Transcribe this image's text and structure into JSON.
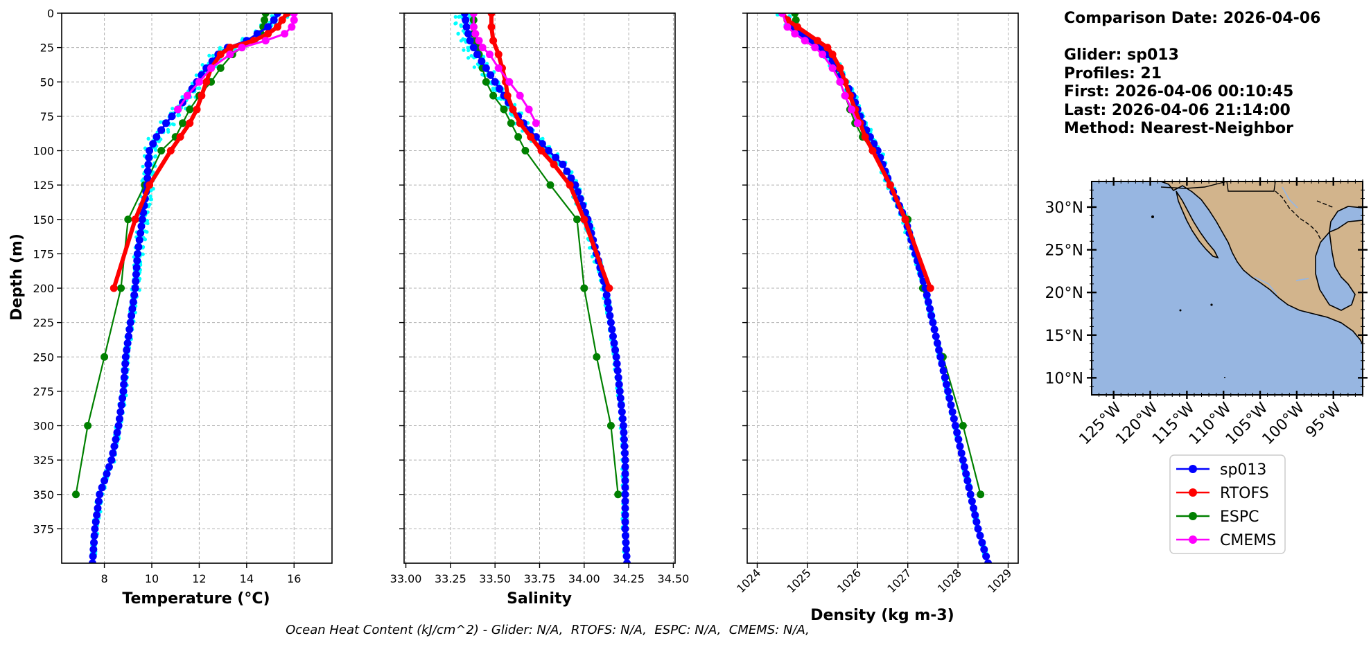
{
  "info": {
    "comparison_date": "Comparison Date: 2026-04-06",
    "glider": "Glider: sp013",
    "profiles": "Profiles: 21",
    "first": "First: 2026-04-06 00:10:45",
    "last": "Last: 2026-04-06 21:14:00",
    "method": "Method: Nearest-Neighbor"
  },
  "footer": "Ocean Heat Content (kJ/cm^2) - Glider: N/A,  RTOFS: N/A,  ESPC: N/A,  CMEMS: N/A,",
  "colors": {
    "sp013": "#0000ff",
    "RTOFS": "#ff0000",
    "ESPC": "#008000",
    "CMEMS": "#ff00ff",
    "glider_raw": "#00ffff",
    "ocean": "#97b6e1",
    "land": "#d2b48c"
  },
  "legend": [
    "sp013",
    "RTOFS",
    "ESPC",
    "CMEMS"
  ],
  "chart_data": [
    {
      "type": "line",
      "xlabel": "Temperature (°C)",
      "ylabel": "Depth (m)",
      "xlim": [
        6.2,
        17.6
      ],
      "ylim": [
        400,
        0
      ],
      "xticks": [
        8,
        10,
        12,
        14,
        16
      ],
      "yticks": [
        0,
        25,
        50,
        75,
        100,
        125,
        150,
        175,
        200,
        225,
        250,
        275,
        300,
        325,
        350,
        375
      ],
      "grid": true,
      "series": [
        {
          "name": "sp013",
          "depth": [
            2,
            10,
            20,
            25,
            30,
            40,
            50,
            60,
            70,
            80,
            90,
            100,
            110,
            125,
            150,
            175,
            200,
            225,
            250,
            275,
            300,
            325,
            350,
            375,
            400
          ],
          "values": [
            15.3,
            14.9,
            14.0,
            13.2,
            12.8,
            12.3,
            11.9,
            11.5,
            11.1,
            10.6,
            10.2,
            9.9,
            9.85,
            9.8,
            9.6,
            9.4,
            9.3,
            9.1,
            8.9,
            8.8,
            8.6,
            8.3,
            7.8,
            7.6,
            7.5
          ]
        },
        {
          "name": "RTOFS",
          "depth": [
            0,
            5,
            10,
            15,
            20,
            25,
            30,
            40,
            50,
            60,
            70,
            80,
            90,
            100,
            125,
            150,
            200
          ],
          "values": [
            15.7,
            15.5,
            15.3,
            14.9,
            14.3,
            13.3,
            12.9,
            12.5,
            12.3,
            12.1,
            11.9,
            11.6,
            11.2,
            10.8,
            9.9,
            9.3,
            8.4
          ]
        },
        {
          "name": "ESPC",
          "depth": [
            0,
            5,
            10,
            15,
            20,
            25,
            30,
            40,
            50,
            60,
            70,
            80,
            90,
            100,
            125,
            150,
            200,
            250,
            300,
            350
          ],
          "values": [
            14.8,
            14.75,
            14.7,
            14.6,
            14.3,
            13.8,
            13.4,
            12.9,
            12.5,
            12.0,
            11.6,
            11.3,
            11.0,
            10.4,
            9.7,
            9.0,
            8.7,
            8.0,
            7.3,
            6.8
          ]
        },
        {
          "name": "CMEMS",
          "depth": [
            0,
            5,
            10,
            15,
            20,
            25,
            30,
            40,
            50,
            60,
            70
          ],
          "values": [
            16.0,
            16.0,
            15.9,
            15.6,
            14.8,
            13.8,
            13.3,
            12.5,
            12.0,
            11.5,
            11.1
          ]
        }
      ]
    },
    {
      "type": "line",
      "xlabel": "Salinity",
      "xlim": [
        32.99,
        34.51
      ],
      "ylim": [
        400,
        0
      ],
      "xticks": [
        "33.00",
        "33.25",
        "33.50",
        "33.75",
        "34.00",
        "34.25",
        "34.50"
      ],
      "grid": true,
      "series": [
        {
          "name": "sp013",
          "depth": [
            0,
            10,
            20,
            30,
            40,
            50,
            60,
            70,
            80,
            90,
            100,
            110,
            125,
            150,
            175,
            200,
            225,
            250,
            275,
            300,
            325,
            350,
            375,
            400
          ],
          "values": [
            33.33,
            33.34,
            33.36,
            33.4,
            33.45,
            33.5,
            33.55,
            33.6,
            33.66,
            33.73,
            33.8,
            33.88,
            33.95,
            34.02,
            34.07,
            34.12,
            34.15,
            34.18,
            34.2,
            34.22,
            34.23,
            34.23,
            34.23,
            34.24
          ]
        },
        {
          "name": "RTOFS",
          "depth": [
            0,
            10,
            20,
            30,
            40,
            50,
            60,
            70,
            80,
            90,
            100,
            110,
            125,
            150,
            200
          ],
          "values": [
            33.48,
            33.48,
            33.49,
            33.52,
            33.54,
            33.56,
            33.57,
            33.6,
            33.64,
            33.7,
            33.76,
            33.83,
            33.92,
            34.0,
            34.14
          ]
        },
        {
          "name": "ESPC",
          "depth": [
            0,
            5,
            10,
            15,
            20,
            25,
            30,
            40,
            50,
            60,
            70,
            80,
            90,
            100,
            125,
            150,
            200,
            250,
            300,
            350
          ],
          "values": [
            33.38,
            33.38,
            33.38,
            33.38,
            33.39,
            33.4,
            33.41,
            33.43,
            33.45,
            33.49,
            33.55,
            33.59,
            33.63,
            33.67,
            33.81,
            33.96,
            34.0,
            34.07,
            34.15,
            34.19
          ]
        },
        {
          "name": "CMEMS",
          "depth": [
            0,
            10,
            15,
            20,
            25,
            30,
            40,
            50,
            60,
            70,
            80
          ],
          "values": [
            33.38,
            33.38,
            33.39,
            33.41,
            33.43,
            33.47,
            33.52,
            33.58,
            33.64,
            33.69,
            33.73
          ]
        }
      ]
    },
    {
      "type": "line",
      "xlabel": "Density (kg m-3)",
      "xlim": [
        1023.8,
        1029.2
      ],
      "ylim": [
        400,
        0
      ],
      "xticks": [
        1024,
        1025,
        1026,
        1027,
        1028,
        1029
      ],
      "grid": true,
      "series": [
        {
          "name": "sp013",
          "depth": [
            0,
            10,
            20,
            30,
            40,
            50,
            60,
            70,
            80,
            90,
            100,
            110,
            125,
            150,
            175,
            200,
            225,
            250,
            275,
            300,
            325,
            350,
            375,
            400
          ],
          "values": [
            1024.5,
            1024.7,
            1025.1,
            1025.4,
            1025.6,
            1025.75,
            1025.9,
            1026.0,
            1026.1,
            1026.25,
            1026.4,
            1026.5,
            1026.65,
            1026.95,
            1027.15,
            1027.35,
            1027.5,
            1027.65,
            1027.8,
            1027.95,
            1028.1,
            1028.25,
            1028.4,
            1028.6
          ]
        },
        {
          "name": "RTOFS",
          "depth": [
            0,
            5,
            10,
            20,
            25,
            30,
            40,
            50,
            60,
            70,
            80,
            90,
            100,
            125,
            150,
            200
          ],
          "values": [
            1024.5,
            1024.6,
            1024.8,
            1025.2,
            1025.4,
            1025.5,
            1025.65,
            1025.75,
            1025.85,
            1025.95,
            1026.05,
            1026.15,
            1026.3,
            1026.65,
            1026.95,
            1027.45
          ]
        },
        {
          "name": "ESPC",
          "depth": [
            0,
            5,
            10,
            15,
            20,
            25,
            30,
            40,
            50,
            60,
            70,
            80,
            90,
            100,
            125,
            150,
            200,
            250,
            300,
            350
          ],
          "values": [
            1024.75,
            1024.77,
            1024.8,
            1024.9,
            1025.1,
            1025.3,
            1025.4,
            1025.55,
            1025.65,
            1025.75,
            1025.85,
            1025.95,
            1026.1,
            1026.3,
            1026.65,
            1027.0,
            1027.3,
            1027.7,
            1028.1,
            1028.45
          ]
        },
        {
          "name": "CMEMS",
          "depth": [
            0,
            10,
            15,
            20,
            25,
            30,
            40,
            50,
            60,
            70,
            80
          ],
          "values": [
            1024.5,
            1024.6,
            1024.75,
            1024.95,
            1025.15,
            1025.3,
            1025.5,
            1025.65,
            1025.75,
            1025.88,
            1026.0
          ]
        }
      ]
    },
    {
      "type": "map",
      "lon_range": [
        -128,
        -91
      ],
      "lat_range": [
        8,
        33
      ],
      "xticks": [
        "125°W",
        "120°W",
        "115°W",
        "110°W",
        "105°W",
        "100°W",
        "95°W"
      ],
      "yticks": [
        "30°N",
        "25°N",
        "20°N",
        "15°N",
        "10°N"
      ]
    }
  ]
}
